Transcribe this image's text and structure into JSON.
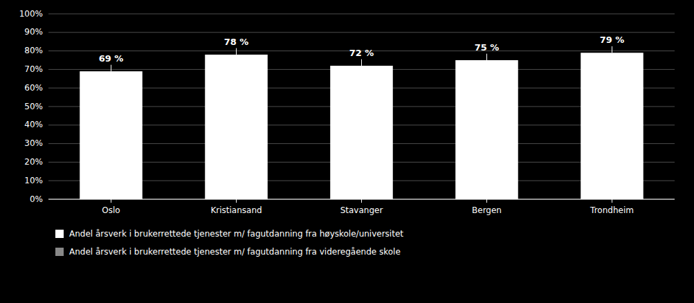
{
  "chart_data": {
    "type": "bar",
    "categories": [
      "Oslo",
      "Kristiansand",
      "Stavanger",
      "Bergen",
      "Trondheim"
    ],
    "series": [
      {
        "name": "Andel årsverk i brukerrettede tjenester m/ fagutdanning fra høyskole/universitet",
        "color": "#ffffff",
        "values": [
          69,
          78,
          72,
          75,
          79
        ],
        "errors": [
          3.5,
          3.5,
          3.5,
          3.5,
          3.5
        ],
        "value_labels": [
          "69 %",
          "78 %",
          "72 %",
          "75 %",
          "79 %"
        ]
      },
      {
        "name": "Andel årsverk i brukerrettede tjenester m/ fagutdanning fra videregående skole",
        "color": "#888888",
        "values": [
          null,
          null,
          null,
          null,
          null
        ]
      }
    ],
    "ylim": [
      0,
      100
    ],
    "yticks": [
      {
        "value": 0,
        "label": "0%"
      },
      {
        "value": 10,
        "label": "10%"
      },
      {
        "value": 20,
        "label": "20%"
      },
      {
        "value": 30,
        "label": "30%"
      },
      {
        "value": 40,
        "label": "40%"
      },
      {
        "value": 50,
        "label": "50%"
      },
      {
        "value": 60,
        "label": "60%"
      },
      {
        "value": 70,
        "label": "70%"
      },
      {
        "value": 80,
        "label": "80%"
      },
      {
        "value": 90,
        "label": "90%"
      },
      {
        "value": 100,
        "label": "100%"
      }
    ],
    "grid": true,
    "data_labels": true,
    "legend": "bottom-left"
  }
}
